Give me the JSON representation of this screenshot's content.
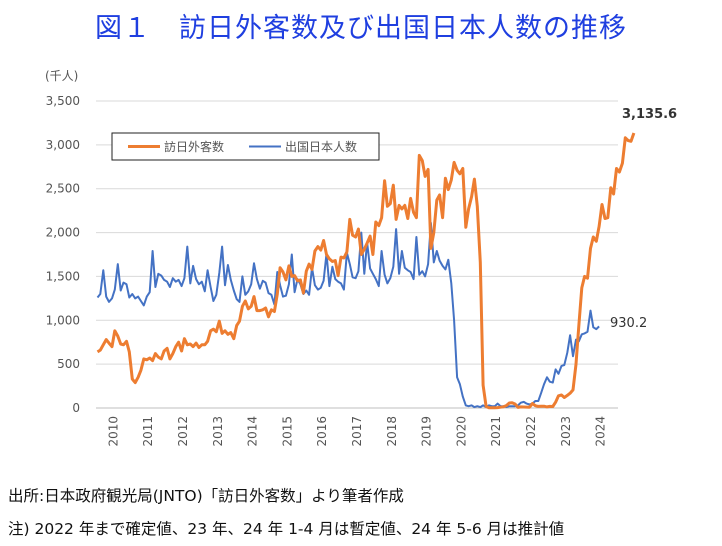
{
  "title": "図１　訪日外客数及び出国日本人数の推移",
  "source": "出所:日本政府観光局(JNTO)「訪日外客数」より筆者作成",
  "note": "注) 2022 年まで確定値、23 年、24 年 1-4 月は暫定値、24 年 5-6 月は推計値",
  "colors": {
    "visitors": "#ed7d31",
    "outbound": "#4472c4",
    "title": "#1f3fe0"
  },
  "chart_data": {
    "type": "line",
    "unit": "(千人)",
    "ylim": [
      0,
      3500
    ],
    "yticks": [
      "0",
      "500",
      "1,000",
      "1,500",
      "2,000",
      "2,500",
      "3,000",
      "3,500"
    ],
    "xticks": [
      "2010",
      "2011",
      "2012",
      "2013",
      "2014",
      "2015",
      "2016",
      "2017",
      "2018",
      "2019",
      "2020",
      "2021",
      "2022",
      "2023",
      "2024"
    ],
    "grid": true,
    "legend": "top-left",
    "annotations": {
      "visitors_last": "3,135.6",
      "outbound_last": "930.2"
    },
    "series": [
      {
        "name": "訪日外客数",
        "values": [
          640,
          660,
          720,
          780,
          740,
          700,
          880,
          820,
          730,
          720,
          760,
          640,
          330,
          290,
          350,
          430,
          560,
          550,
          570,
          540,
          620,
          580,
          560,
          650,
          680,
          560,
          620,
          700,
          750,
          650,
          790,
          720,
          730,
          700,
          740,
          690,
          720,
          720,
          760,
          880,
          900,
          870,
          990,
          850,
          880,
          840,
          860,
          790,
          940,
          990,
          1160,
          1220,
          1130,
          1160,
          1270,
          1110,
          1110,
          1120,
          1140,
          1040,
          1120,
          1100,
          1300,
          1600,
          1550,
          1460,
          1620,
          1500,
          1510,
          1450,
          1460,
          1310,
          1560,
          1640,
          1580,
          1790,
          1840,
          1800,
          1910,
          1750,
          1700,
          1670,
          1680,
          1510,
          1720,
          1710,
          1780,
          2150,
          1970,
          1950,
          2040,
          1750,
          1810,
          1880,
          1960,
          1750,
          2120,
          2080,
          2170,
          2590,
          2300,
          2330,
          2540,
          2150,
          2310,
          2270,
          2310,
          2160,
          2390,
          2230,
          2170,
          2880,
          2820,
          2640,
          2720,
          1820,
          2000,
          2370,
          2430,
          2170,
          2620,
          2490,
          2600,
          2800,
          2710,
          2670,
          2730,
          2060,
          2270,
          2410,
          2610,
          2300,
          1660,
          260,
          17,
          3,
          2,
          3,
          4,
          9,
          14,
          27,
          57,
          59,
          46,
          7,
          12,
          11,
          10,
          9,
          51,
          26,
          18,
          19,
          21,
          12,
          18,
          17,
          66,
          139,
          148,
          120,
          144,
          169,
          206,
          499,
          934,
          1370,
          1500,
          1480,
          1820,
          1950,
          1900,
          2070,
          2320,
          2160,
          2170,
          2510,
          2440,
          2730,
          2690,
          2790,
          3080,
          3050,
          3040,
          3135.6
        ]
      },
      {
        "name": "出国日本人数",
        "values": [
          1260,
          1300,
          1570,
          1270,
          1210,
          1250,
          1350,
          1640,
          1340,
          1430,
          1410,
          1260,
          1300,
          1250,
          1270,
          1220,
          1170,
          1270,
          1320,
          1790,
          1380,
          1530,
          1510,
          1460,
          1440,
          1380,
          1480,
          1440,
          1460,
          1390,
          1480,
          1840,
          1420,
          1620,
          1470,
          1410,
          1440,
          1330,
          1570,
          1380,
          1220,
          1290,
          1540,
          1840,
          1400,
          1630,
          1460,
          1340,
          1240,
          1210,
          1500,
          1290,
          1330,
          1410,
          1650,
          1470,
          1360,
          1450,
          1430,
          1310,
          1290,
          1180,
          1550,
          1400,
          1270,
          1280,
          1410,
          1750,
          1320,
          1470,
          1410,
          1300,
          1340,
          1290,
          1600,
          1400,
          1350,
          1370,
          1450,
          1760,
          1390,
          1610,
          1470,
          1440,
          1420,
          1350,
          1770,
          1640,
          1490,
          1480,
          1560,
          2000,
          1530,
          1890,
          1590,
          1530,
          1470,
          1390,
          1790,
          1520,
          1420,
          1480,
          1610,
          2040,
          1530,
          1790,
          1600,
          1570,
          1550,
          1470,
          1950,
          1520,
          1560,
          1500,
          1640,
          2110,
          1660,
          1790,
          1680,
          1620,
          1580,
          1690,
          1420,
          1000,
          350,
          270,
          130,
          30,
          20,
          30,
          10,
          20,
          10,
          30,
          10,
          30,
          20,
          20,
          50,
          20,
          20,
          10,
          20,
          20,
          20,
          30,
          60,
          70,
          50,
          40,
          50,
          80,
          80,
          170,
          270,
          350,
          300,
          290,
          440,
          390,
          480,
          490,
          630,
          830,
          590,
          780,
          760,
          840,
          850,
          870,
          1110,
          920,
          900,
          930.2
        ]
      }
    ]
  }
}
